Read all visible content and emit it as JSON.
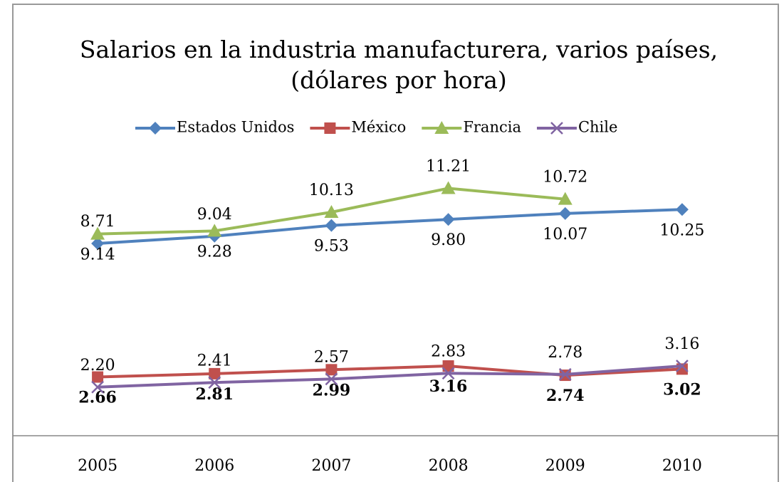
{
  "chart_data": {
    "type": "line",
    "title": [
      "Salarios en la industria manufacturera, varios países,",
      "(dólares por hora)"
    ],
    "categories": [
      "2005",
      "2006",
      "2007",
      "2008",
      "2009",
      "2010"
    ],
    "ylim": [
      0,
      12
    ],
    "series": [
      {
        "name": "Estados Unidos",
        "color": "#4f81bd",
        "marker": "diamond",
        "values": [
          8.71,
          9.04,
          9.53,
          9.8,
          10.07,
          10.25
        ],
        "value_labels": [
          "8.71",
          "9.04",
          "9.53",
          "9.80",
          "10.07",
          "10.25"
        ]
      },
      {
        "name": "México",
        "color": "#c0504d",
        "marker": "square",
        "values": [
          2.66,
          2.81,
          2.99,
          3.16,
          2.74,
          3.02
        ],
        "value_labels": [
          "2.66",
          "2.81",
          "2.99",
          "3.16",
          "2.74",
          "3.02"
        ]
      },
      {
        "name": "Francia",
        "color": "#9bbb59",
        "marker": "triangle",
        "values": [
          9.14,
          9.28,
          10.13,
          11.21,
          10.72,
          null
        ],
        "value_labels": [
          "9.14",
          "9.28",
          "10.13",
          "11.21",
          "10.72",
          null
        ]
      },
      {
        "name": "Chile",
        "color": "#8064a2",
        "marker": "x",
        "values": [
          2.2,
          2.41,
          2.57,
          2.83,
          2.78,
          3.16
        ],
        "value_labels": [
          "2.20",
          "2.41",
          "2.57",
          "2.83",
          "2.78",
          "3.16"
        ]
      }
    ]
  }
}
